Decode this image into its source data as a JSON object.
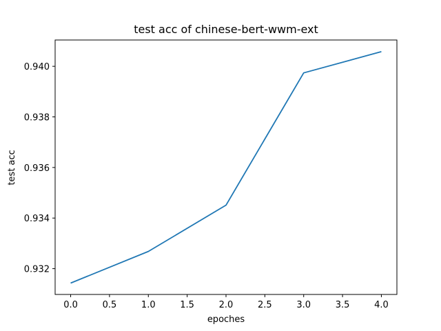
{
  "chart_data": {
    "type": "line",
    "title": "test acc of chinese-bert-wwm-ext",
    "xlabel": "epoches",
    "ylabel": "test acc",
    "x": [
      0,
      1,
      2,
      3,
      4
    ],
    "series": [
      {
        "values": [
          0.93143,
          0.93268,
          0.93451,
          0.93974,
          0.94058
        ]
      }
    ],
    "xlim": [
      -0.2,
      4.2
    ],
    "ylim": [
      0.93098,
      0.94104
    ],
    "xticks": [
      0.0,
      0.5,
      1.0,
      1.5,
      2.0,
      2.5,
      3.0,
      3.5,
      4.0
    ],
    "xtick_labels": [
      "0.0",
      "0.5",
      "1.0",
      "1.5",
      "2.0",
      "2.5",
      "3.0",
      "3.5",
      "4.0"
    ],
    "yticks": [
      0.932,
      0.934,
      0.936,
      0.938,
      0.94
    ],
    "ytick_labels": [
      "0.932",
      "0.934",
      "0.936",
      "0.938",
      "0.940"
    ],
    "grid": false,
    "line_color": "#1f77b4"
  }
}
